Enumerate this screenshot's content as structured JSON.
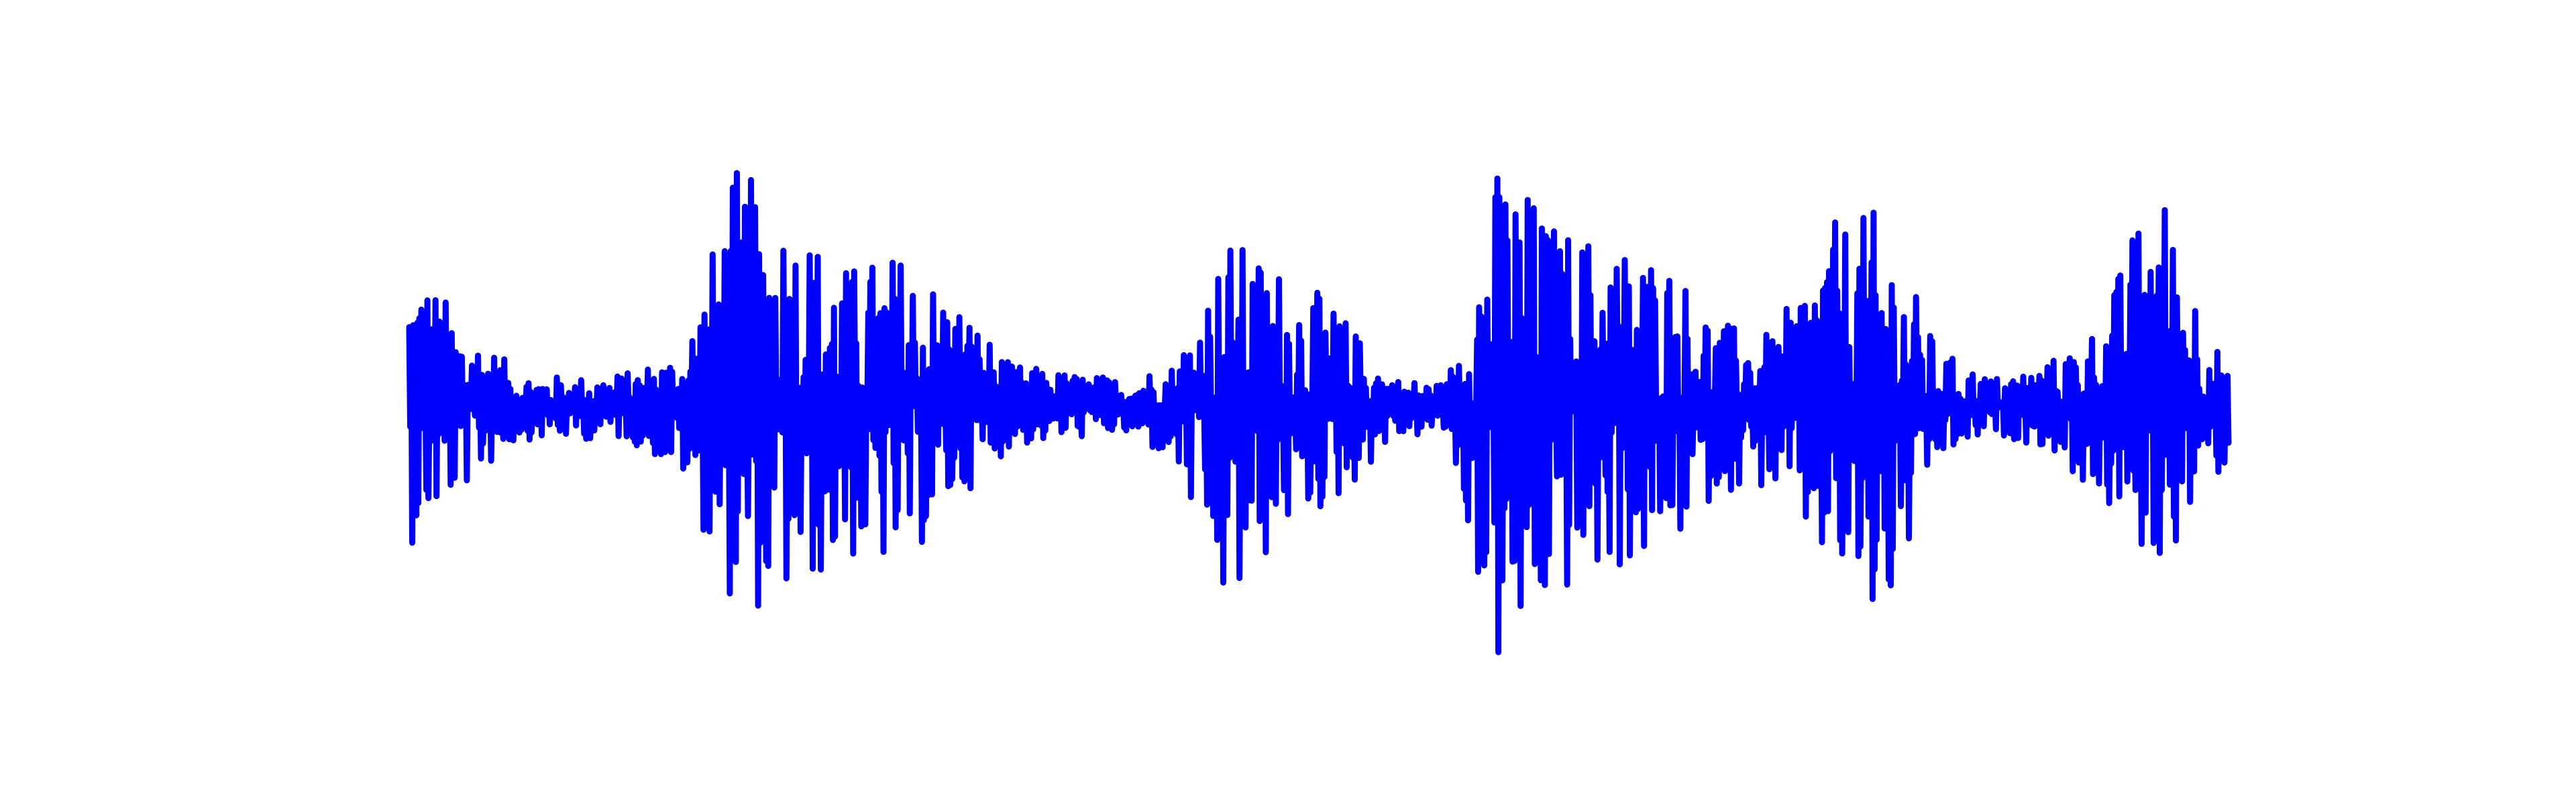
{
  "chart_data": {
    "type": "line",
    "title": "",
    "xlabel": "",
    "ylabel": "",
    "axes_visible": false,
    "grid": false,
    "legend": "none",
    "color": "#0000ff",
    "ylim": [
      -1.0,
      1.0
    ],
    "envelope": {
      "x": [
        0,
        3,
        6,
        9,
        12,
        15,
        18,
        21,
        24,
        27,
        30,
        33,
        36,
        39,
        42,
        45,
        48,
        51,
        54,
        57,
        60,
        63,
        66,
        69,
        72,
        75,
        78,
        81,
        84,
        87,
        90,
        93,
        96,
        100
      ],
      "upper": [
        0.55,
        0.3,
        0.12,
        0.1,
        0.12,
        0.2,
        0.85,
        0.7,
        0.5,
        0.55,
        0.4,
        0.15,
        0.12,
        0.1,
        0.15,
        0.6,
        0.5,
        0.35,
        0.1,
        0.08,
        0.9,
        0.65,
        0.6,
        0.55,
        0.3,
        0.25,
        0.65,
        0.7,
        0.2,
        0.1,
        0.15,
        0.3,
        0.85,
        0.1
      ],
      "lower": [
        -0.5,
        -0.3,
        -0.12,
        -0.12,
        -0.12,
        -0.25,
        -0.75,
        -0.7,
        -0.55,
        -0.6,
        -0.35,
        -0.15,
        -0.12,
        -0.1,
        -0.2,
        -0.8,
        -0.45,
        -0.35,
        -0.12,
        -0.1,
        -1.0,
        -0.7,
        -0.6,
        -0.55,
        -0.3,
        -0.3,
        -0.6,
        -0.85,
        -0.2,
        -0.1,
        -0.15,
        -0.35,
        -0.6,
        -0.2
      ]
    },
    "samples": 1800
  }
}
